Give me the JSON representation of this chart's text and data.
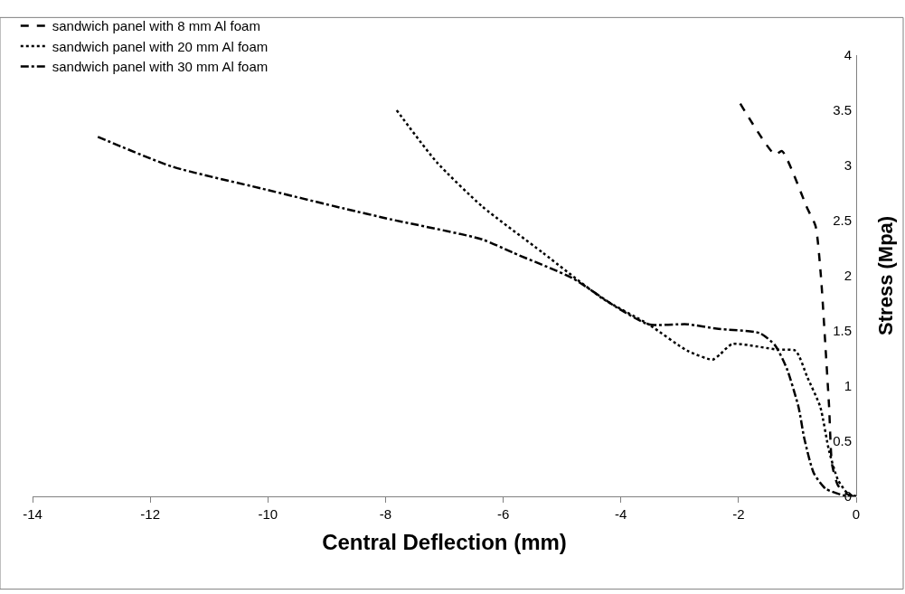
{
  "chart_data": {
    "type": "line",
    "xlabel": "Central Deflection (mm)",
    "ylabel": "Stress (Mpa)",
    "xlim": [
      -14,
      0
    ],
    "xticks": [
      -14,
      -12,
      -10,
      -8,
      -6,
      -4,
      -2,
      0
    ],
    "ylim": [
      0,
      4
    ],
    "yticks": [
      0,
      0.5,
      1,
      1.5,
      2,
      2.5,
      3,
      3.5,
      4
    ],
    "legend": "top left",
    "marker": "none",
    "series": [
      {
        "name": "sandwich panel with 8 mm Al foam",
        "color": "#000000",
        "line_style": "dashed",
        "x": [
          -1.97,
          -1.38,
          -1.26,
          -0.83,
          -0.69,
          -0.6,
          -0.52,
          -0.46,
          -0.41,
          -0.31,
          -0.15,
          0
        ],
        "values": [
          3.56,
          3.1,
          3.13,
          2.61,
          2.45,
          2.0,
          1.34,
          0.81,
          0.29,
          0.1,
          0.02,
          0
        ]
      },
      {
        "name": "sandwich panel with 20 mm Al foam",
        "color": "#000000",
        "line_style": "dotted",
        "x": [
          -7.81,
          -7.13,
          -6.36,
          -5.33,
          -4.3,
          -3.53,
          -2.87,
          -2.44,
          -2.31,
          -2.11,
          -1.34,
          -1.03,
          -0.83,
          -0.61,
          -0.46,
          -0.31,
          -0.15,
          0
        ],
        "values": [
          3.5,
          3.03,
          2.63,
          2.21,
          1.79,
          1.56,
          1.32,
          1.24,
          1.29,
          1.38,
          1.33,
          1.32,
          1.08,
          0.81,
          0.41,
          0.15,
          0.03,
          0
        ]
      },
      {
        "name": "sandwich panel with 30 mm Al foam",
        "color": "#000000",
        "line_style": "dashdot",
        "x": [
          -12.89,
          -11.63,
          -10.1,
          -8.71,
          -7.9,
          -6.36,
          -5.84,
          -4.83,
          -4.06,
          -3.53,
          -2.87,
          -2.37,
          -1.64,
          -1.38,
          -1.18,
          -0.98,
          -0.88,
          -0.72,
          -0.52,
          -0.22,
          0
        ],
        "values": [
          3.26,
          2.99,
          2.79,
          2.61,
          2.51,
          2.33,
          2.21,
          1.98,
          1.71,
          1.56,
          1.56,
          1.52,
          1.48,
          1.37,
          1.16,
          0.81,
          0.52,
          0.21,
          0.07,
          0.01,
          0
        ]
      }
    ]
  }
}
